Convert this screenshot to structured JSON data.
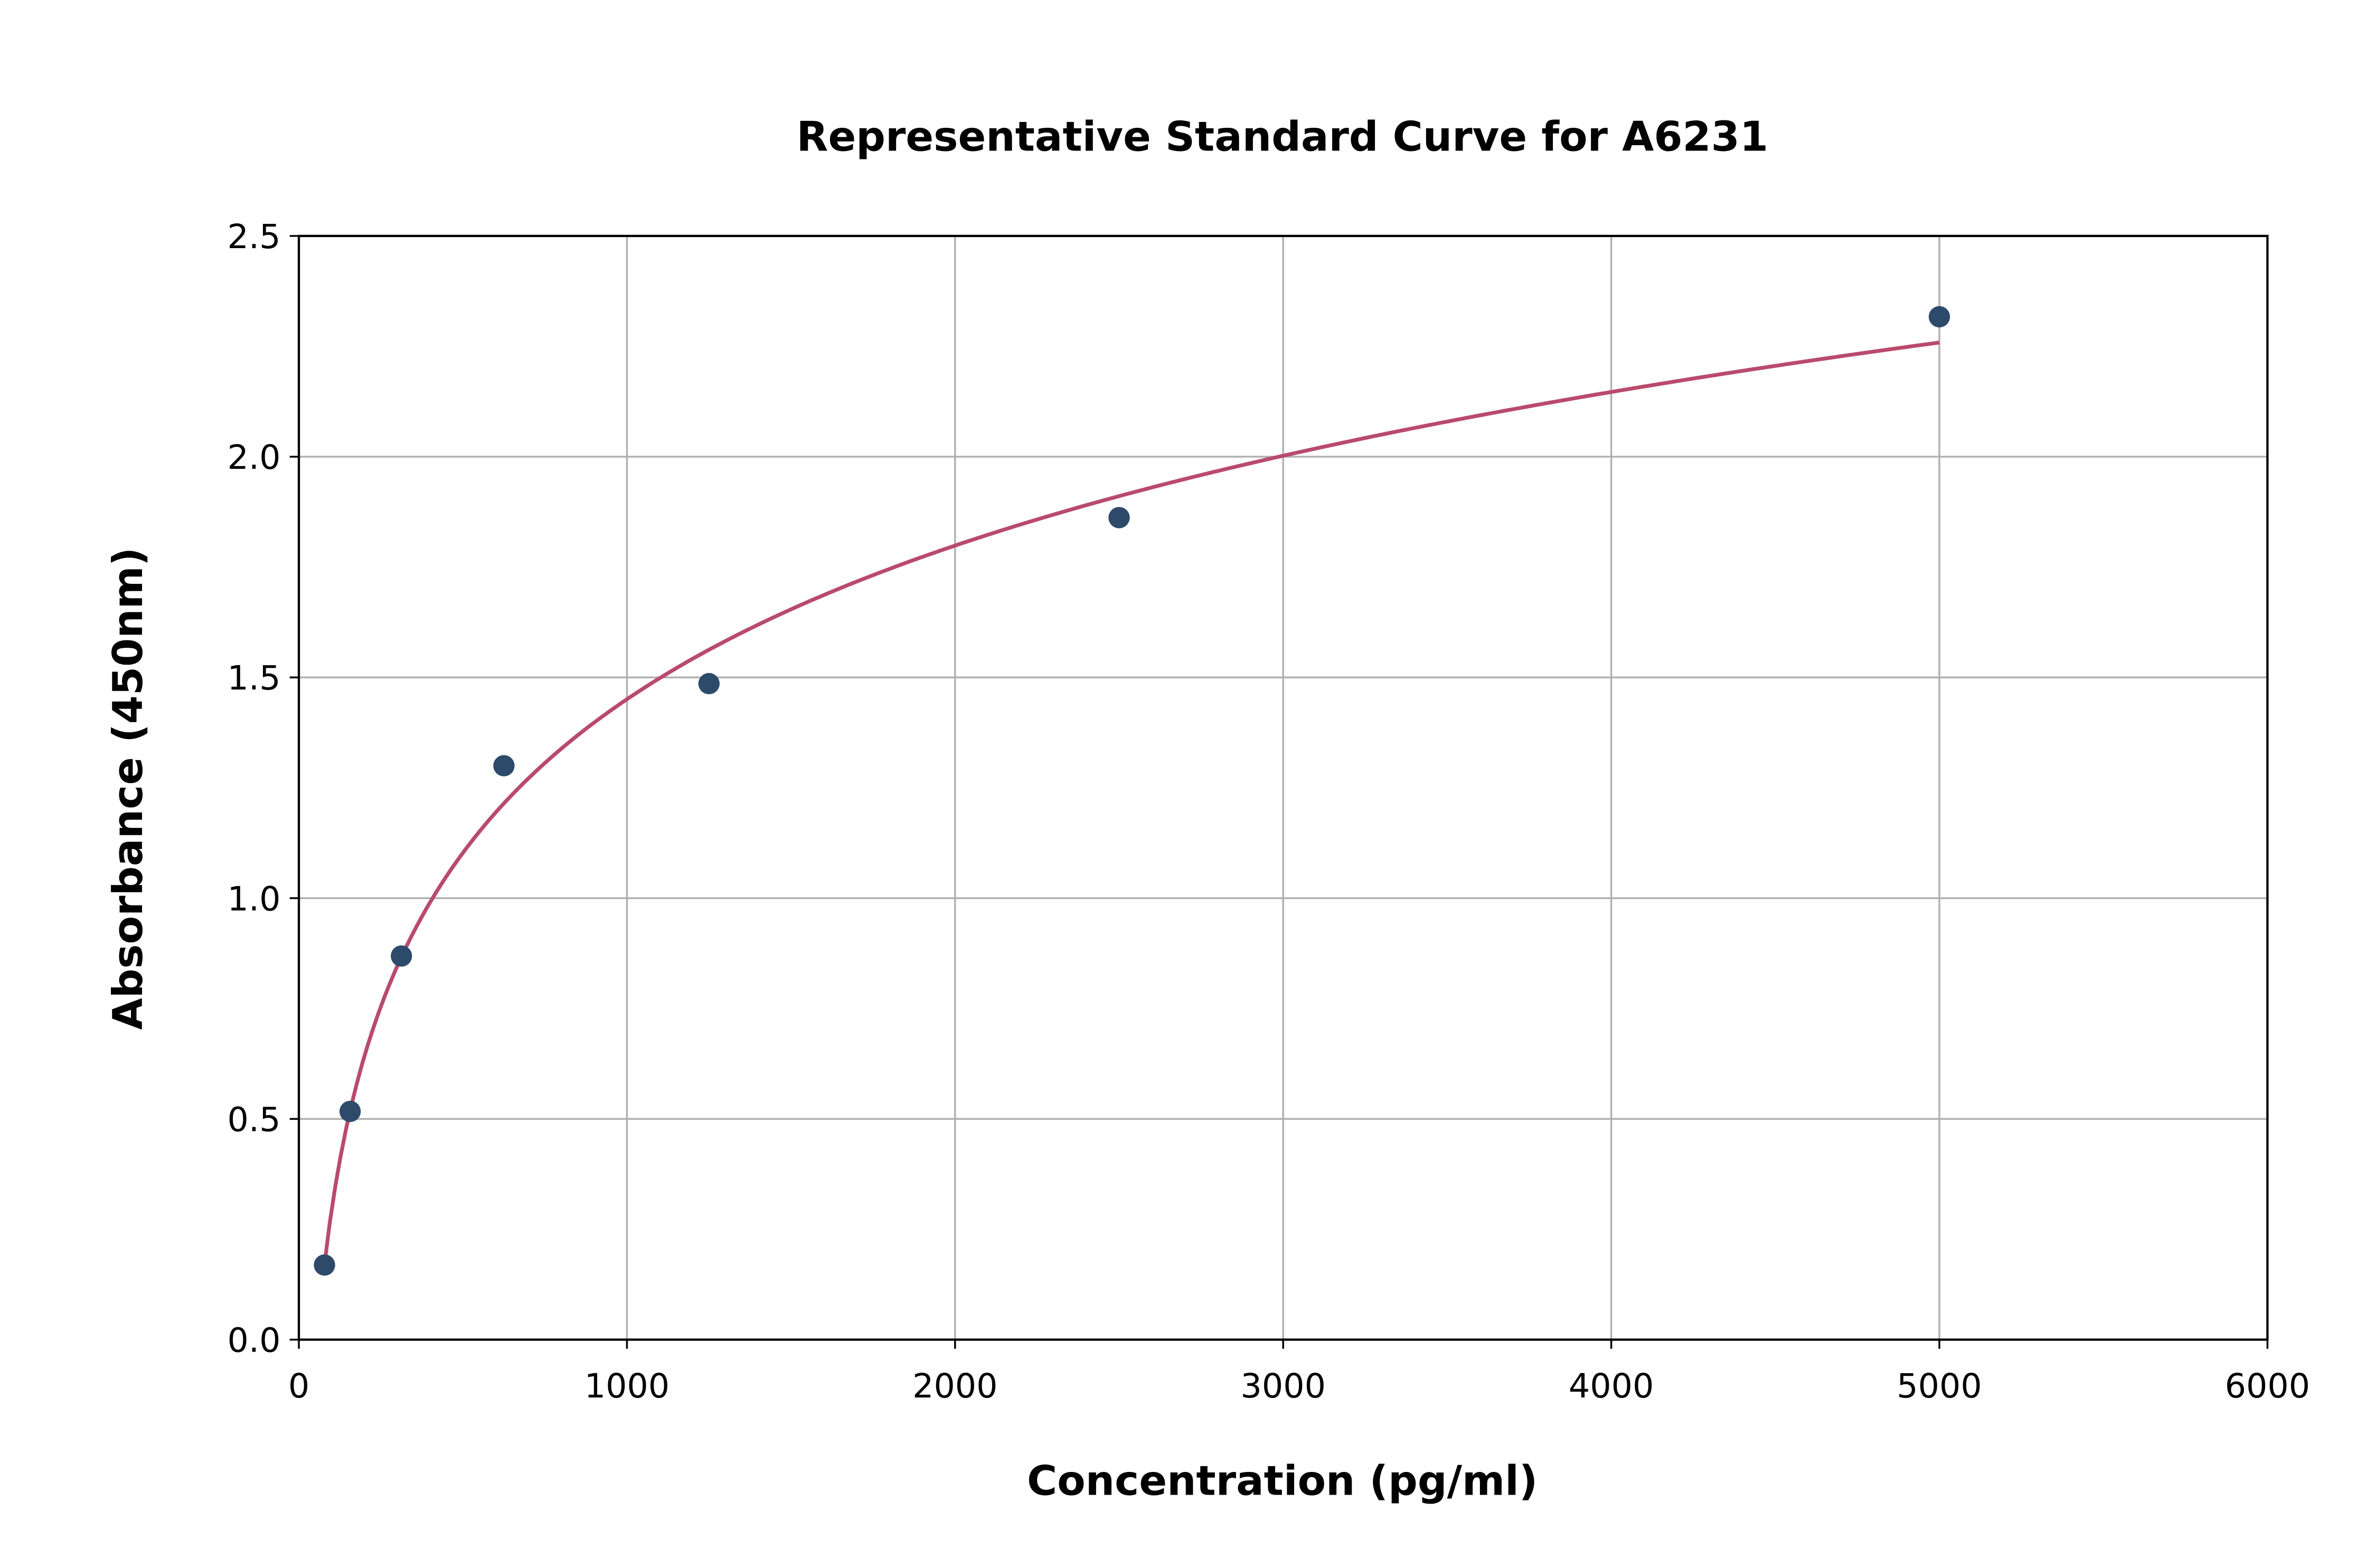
{
  "chart_data": {
    "type": "scatter",
    "title": "Representative Standard Curve for A6231",
    "xlabel": "Concentration (pg/ml)",
    "ylabel": "Absorbance (450nm)",
    "xlim": [
      0,
      6000
    ],
    "ylim": [
      0,
      2.5
    ],
    "xticks": [
      "0",
      "1000",
      "2000",
      "3000",
      "4000",
      "5000",
      "6000"
    ],
    "yticks": [
      "0.0",
      "0.5",
      "1.0",
      "1.5",
      "2.0",
      "2.5"
    ],
    "grid": true,
    "points": {
      "x": [
        78.125,
        156.25,
        312.5,
        625,
        1250,
        2500,
        5000
      ],
      "y": [
        0.169,
        0.517,
        0.869,
        1.3,
        1.486,
        1.862,
        2.317
      ]
    },
    "fit": {
      "model": "logarithmic",
      "a": 0.502,
      "b": -2.017,
      "x_range": [
        78.125,
        5000
      ]
    },
    "colors": {
      "points": "#2e4a6b",
      "curve": "#b94a6e",
      "grid": "#b0b0b0"
    }
  }
}
